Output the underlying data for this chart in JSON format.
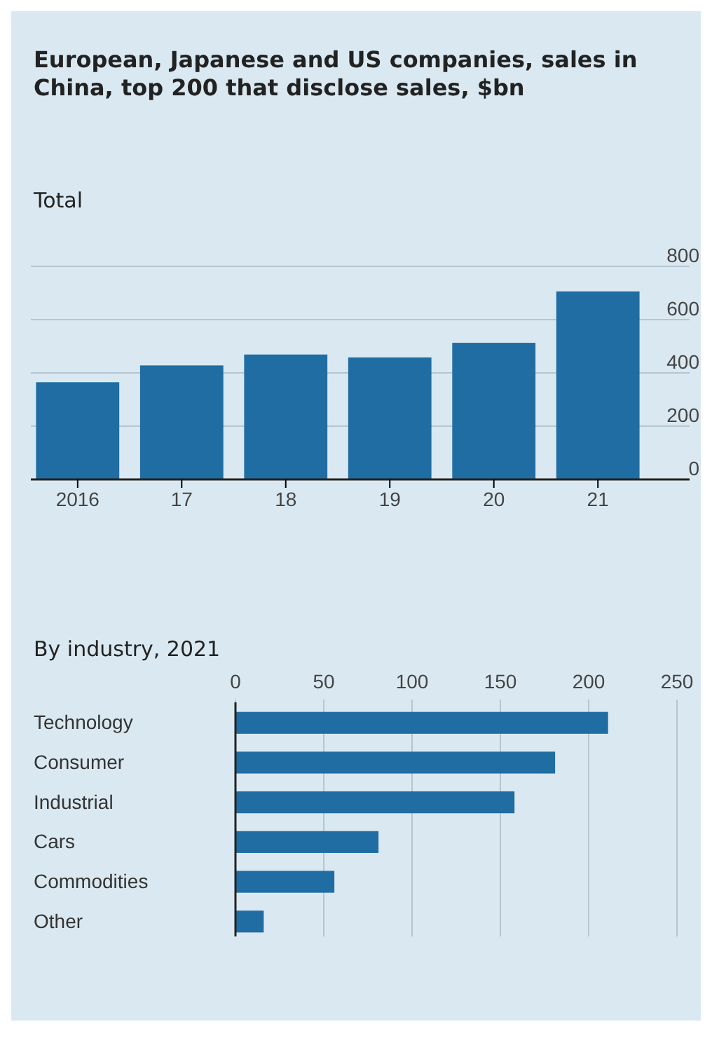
{
  "chart_data": [
    {
      "type": "bar",
      "title": "European, Japanese and US companies, sales in China, top 200 that disclose sales, $bn",
      "subtitle": "Total",
      "categories": [
        "2016",
        "17",
        "18",
        "19",
        "20",
        "21"
      ],
      "values": [
        365,
        428,
        469,
        458,
        513,
        706
      ],
      "color": "#1f6da3",
      "ylim": [
        0,
        800
      ],
      "yticks": [
        0,
        200,
        400,
        600,
        800
      ],
      "grid": "y"
    },
    {
      "type": "bar",
      "orientation": "horizontal",
      "title": "By industry, 2021",
      "categories": [
        "Technology",
        "Consumer",
        "Industrial",
        "Cars",
        "Commodities",
        "Other"
      ],
      "values": [
        211,
        181,
        158,
        81,
        56,
        16
      ],
      "color": "#1f6da3",
      "xlim": [
        0,
        250
      ],
      "xticks": [
        0,
        50,
        100,
        150,
        200,
        250
      ],
      "grid": "x"
    }
  ]
}
